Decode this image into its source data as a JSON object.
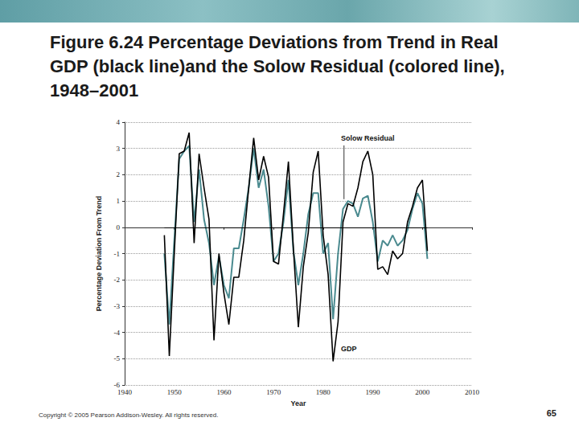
{
  "slide": {
    "copyright": "Copyright © 2005 Pearson Addison-Wesley. All rights reserved.",
    "page": 65
  },
  "chart_data": {
    "type": "line",
    "title": "Figure 6.24  Percentage Deviations from Trend in Real GDP (black line)and the Solow Residual (colored line), 1948–2001",
    "x_label": "Year",
    "y_label": "Percentage Deviation From Trend",
    "x": [
      1948,
      1949,
      1950,
      1951,
      1952,
      1953,
      1954,
      1955,
      1956,
      1957,
      1958,
      1959,
      1960,
      1961,
      1962,
      1963,
      1964,
      1965,
      1966,
      1967,
      1968,
      1969,
      1970,
      1971,
      1972,
      1973,
      1974,
      1975,
      1976,
      1977,
      1978,
      1979,
      1980,
      1981,
      1982,
      1983,
      1984,
      1985,
      1986,
      1987,
      1988,
      1989,
      1990,
      1991,
      1992,
      1993,
      1994,
      1995,
      1996,
      1997,
      1998,
      1999,
      2000,
      2001
    ],
    "series": [
      {
        "name": "Solow Residual",
        "color": "#4a8a8f",
        "values": [
          -1.0,
          -3.7,
          -0.5,
          2.6,
          2.9,
          3.1,
          0.2,
          2.2,
          0.3,
          -0.6,
          -2.2,
          -1.1,
          -2.2,
          -2.7,
          -0.8,
          -0.8,
          0.3,
          1.5,
          3.0,
          1.5,
          2.2,
          0.8,
          -1.3,
          -1.0,
          0.2,
          1.8,
          -0.9,
          -2.2,
          -1.0,
          0.5,
          1.3,
          1.3,
          -1.0,
          -0.6,
          -3.5,
          -1.0,
          0.7,
          1.0,
          0.9,
          0.4,
          1.1,
          1.2,
          0.2,
          -1.3,
          -0.5,
          -0.7,
          -0.3,
          -0.7,
          -0.5,
          -0.1,
          0.7,
          1.3,
          0.9,
          -1.2
        ]
      },
      {
        "name": "GDP",
        "color": "#000000",
        "values": [
          -0.3,
          -4.9,
          -1.0,
          2.8,
          2.9,
          3.6,
          -0.6,
          2.8,
          1.5,
          0.3,
          -4.3,
          -1.0,
          -2.5,
          -3.7,
          -1.9,
          -1.9,
          -0.5,
          1.5,
          3.4,
          1.8,
          2.7,
          1.9,
          -1.3,
          -1.4,
          0.5,
          2.5,
          -0.8,
          -3.8,
          -1.5,
          -0.2,
          2.1,
          2.9,
          -0.3,
          -1.8,
          -5.1,
          -3.6,
          0.2,
          0.9,
          0.8,
          1.5,
          2.5,
          2.9,
          2.0,
          -1.6,
          -1.5,
          -1.8,
          -0.9,
          -1.2,
          -1.0,
          0.2,
          0.8,
          1.5,
          1.8,
          -0.9
        ]
      }
    ],
    "baseline": 0,
    "annotations": [
      {
        "text": "Solow Residual",
        "x": 1983.6,
        "y": 3.33,
        "line_to": [
          1984.2,
          1.07
        ]
      },
      {
        "text": "GDP",
        "x": 1983.6,
        "y": -4.68
      }
    ],
    "xlim": [
      1940,
      2010
    ],
    "xticks": [
      1940,
      1950,
      1960,
      1970,
      1980,
      1990,
      2000,
      2010
    ],
    "ylim": [
      -6,
      4
    ],
    "yticks": [
      -6,
      -5,
      -4,
      -3,
      -2,
      -1,
      0,
      1,
      2,
      3,
      4
    ],
    "grid": true
  }
}
